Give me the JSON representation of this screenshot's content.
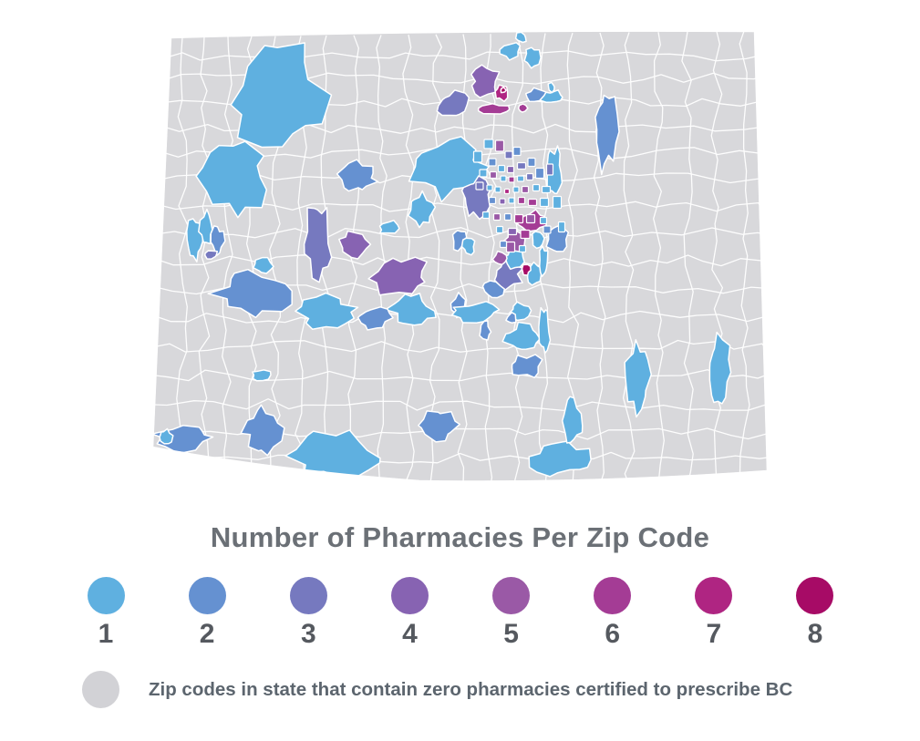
{
  "title": "Number of Pharmacies Per Zip Code",
  "legend": {
    "items": [
      {
        "label": "1",
        "color": "#5FB0E0"
      },
      {
        "label": "2",
        "color": "#6591D1"
      },
      {
        "label": "3",
        "color": "#7679BF"
      },
      {
        "label": "4",
        "color": "#8763B2"
      },
      {
        "label": "5",
        "color": "#9A59A6"
      },
      {
        "label": "6",
        "color": "#A43C95"
      },
      {
        "label": "7",
        "color": "#AF2582"
      },
      {
        "label": "8",
        "color": "#A70B66"
      }
    ],
    "zero_item": {
      "label": "Zip codes in state that contain zero pharmacies certified to prescribe BC",
      "color": "#D2D2D6"
    }
  },
  "map": {
    "region_fill": "#D8D8DB",
    "boundary_color": "#FFFFFF"
  },
  "chart_data": {
    "type": "choropleth",
    "title": "Number of Pharmacies Per Zip Code",
    "geography": "Colorado zip code areas",
    "scale": {
      "levels": [
        1,
        2,
        3,
        4,
        5,
        6,
        7,
        8
      ],
      "colors": [
        "#5FB0E0",
        "#6591D1",
        "#7679BF",
        "#8763B2",
        "#9A59A6",
        "#A43C95",
        "#AF2582",
        "#A70B66"
      ],
      "zero_label": "Zip codes in state that contain zero pharmacies certified to prescribe BC",
      "zero_color": "#D8D8DB"
    },
    "legend_position": "bottom",
    "notes": "Most zip codes shown gray (zero pharmacies); scattered zip codes colored 1-8, densest multi-color cluster in Denver metro area, smaller clusters near Fort Collins/Greeley, Colorado Springs and Pueblo; mostly light blue (1-2) patches across western mountains and plains."
  }
}
